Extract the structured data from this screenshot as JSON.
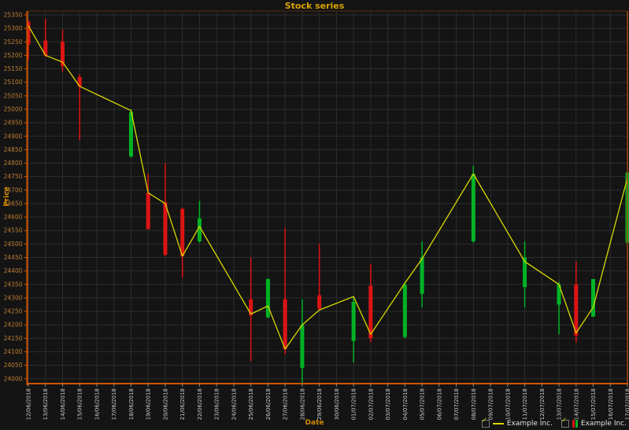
{
  "window": {
    "title": "Stock series"
  },
  "axes": {
    "y_title": "Price",
    "x_title": "Date",
    "y_ticks": [
      25350,
      25300,
      25250,
      25200,
      25150,
      25100,
      25050,
      25000,
      24950,
      24900,
      24850,
      24800,
      24750,
      24700,
      24650,
      24600,
      24550,
      24500,
      24450,
      24400,
      24350,
      24300,
      24250,
      24200,
      24150,
      24100,
      24050,
      24000
    ],
    "x_ticks": [
      "12/06/2018",
      "13/06/2018",
      "14/06/2018",
      "15/06/2018",
      "16/06/2018",
      "17/06/2018",
      "18/06/2018",
      "19/06/2018",
      "20/06/2018",
      "21/06/2018",
      "22/06/2018",
      "23/06/2018",
      "24/06/2018",
      "25/06/2018",
      "26/06/2018",
      "27/06/2018",
      "28/06/2018",
      "29/06/2018",
      "30/06/2018",
      "01/07/2018",
      "02/07/2018",
      "03/07/2018",
      "04/07/2018",
      "05/07/2018",
      "06/07/2018",
      "07/07/2018",
      "08/07/2018",
      "09/07/2018",
      "10/07/2018",
      "11/07/2018",
      "12/07/2018",
      "13/07/2018",
      "14/07/2018",
      "15/07/2018",
      "16/07/2018",
      "17/07/2018"
    ]
  },
  "legend": {
    "items": [
      {
        "label": "Example Inc.",
        "marker": "line-marker",
        "checked": true
      },
      {
        "label": "Example Inc.",
        "marker": "candle-marker",
        "checked": true
      }
    ]
  },
  "icons": {
    "checkbox_check": "✓"
  },
  "colors": {
    "background": "#141414",
    "grid": "#2d2d2d",
    "axis_line": "#d35400",
    "border_right": "#a04a10",
    "border_top": "#3e2410",
    "y_tick_text": "#bd7c33",
    "x_tick_text": "#c9c9c9",
    "x_tick_mark": "#8a8a8a",
    "title_text": "#d9a300",
    "line_series": "#d8d800",
    "candle_up": "#00b325",
    "candle_down": "#dc1414"
  },
  "chart_data": {
    "type": "candlestick+line",
    "title": "Stock series",
    "xlabel": "Date",
    "ylabel": "Price",
    "ylim": [
      23975,
      25365
    ],
    "y_tick_step": 50,
    "grid": true,
    "legend_position": "bottom-right",
    "x_labels": [
      "12/06/2018",
      "13/06/2018",
      "14/06/2018",
      "15/06/2018",
      "16/06/2018",
      "17/06/2018",
      "18/06/2018",
      "19/06/2018",
      "20/06/2018",
      "21/06/2018",
      "22/06/2018",
      "23/06/2018",
      "24/06/2018",
      "25/06/2018",
      "26/06/2018",
      "27/06/2018",
      "28/06/2018",
      "29/06/2018",
      "30/06/2018",
      "01/07/2018",
      "02/07/2018",
      "03/07/2018",
      "04/07/2018",
      "05/07/2018",
      "06/07/2018",
      "07/07/2018",
      "08/07/2018",
      "09/07/2018",
      "10/07/2018",
      "11/07/2018",
      "12/07/2018",
      "13/07/2018",
      "14/07/2018",
      "15/07/2018",
      "16/07/2018",
      "17/07/2018"
    ],
    "series": [
      {
        "name": "Example Inc.",
        "type": "line",
        "points": [
          [
            "12/06/2018",
            25310
          ],
          [
            "13/06/2018",
            25200
          ],
          [
            "14/06/2018",
            25175
          ],
          [
            "15/06/2018",
            25085
          ],
          [
            "18/06/2018",
            24995
          ],
          [
            "19/06/2018",
            24690
          ],
          [
            "20/06/2018",
            24650
          ],
          [
            "21/06/2018",
            24455
          ],
          [
            "22/06/2018",
            24565
          ],
          [
            "25/06/2018",
            24240
          ],
          [
            "26/06/2018",
            24270
          ],
          [
            "27/06/2018",
            24110
          ],
          [
            "28/06/2018",
            24200
          ],
          [
            "29/06/2018",
            24255
          ],
          [
            "01/07/2018",
            24305
          ],
          [
            "02/07/2018",
            24165
          ],
          [
            "04/07/2018",
            24355
          ],
          [
            "05/07/2018",
            24445
          ],
          [
            "08/07/2018",
            24760
          ],
          [
            "11/07/2018",
            24435
          ],
          [
            "13/07/2018",
            24350
          ],
          [
            "14/07/2018",
            24170
          ],
          [
            "15/07/2018",
            24265
          ],
          [
            "17/07/2018",
            24745
          ]
        ]
      },
      {
        "name": "Example Inc.",
        "type": "candlestick",
        "columns": [
          "date",
          "open",
          "high",
          "low",
          "close"
        ],
        "candles": [
          [
            "12/06/2018",
            25325,
            25330,
            25185,
            25240
          ],
          [
            "13/06/2018",
            25255,
            25335,
            25195,
            25200
          ],
          [
            "14/06/2018",
            25250,
            25295,
            25140,
            25160
          ],
          [
            "15/06/2018",
            25120,
            25130,
            24885,
            25085
          ],
          [
            "18/06/2018",
            24825,
            25000,
            24820,
            24990
          ],
          [
            "19/06/2018",
            24690,
            24760,
            24555,
            24555
          ],
          [
            "20/06/2018",
            24655,
            24800,
            24455,
            24460
          ],
          [
            "21/06/2018",
            24630,
            24635,
            24375,
            24455
          ],
          [
            "22/06/2018",
            24510,
            24660,
            24505,
            24595
          ],
          [
            "25/06/2018",
            24295,
            24450,
            24065,
            24235
          ],
          [
            "26/06/2018",
            24228,
            24372,
            24225,
            24370
          ],
          [
            "27/06/2018",
            24295,
            24560,
            24090,
            24110
          ],
          [
            "28/06/2018",
            24040,
            24295,
            23980,
            24200
          ],
          [
            "29/06/2018",
            24310,
            24500,
            24255,
            24260
          ],
          [
            "01/07/2018",
            24140,
            24305,
            24060,
            24285
          ],
          [
            "02/07/2018",
            24345,
            24425,
            24135,
            24150
          ],
          [
            "04/07/2018",
            24155,
            24360,
            24150,
            24350
          ],
          [
            "05/07/2018",
            24315,
            24510,
            24265,
            24450
          ],
          [
            "08/07/2018",
            24510,
            24790,
            24505,
            24760
          ],
          [
            "11/07/2018",
            24340,
            24510,
            24265,
            24450
          ],
          [
            "13/07/2018",
            24275,
            24360,
            24165,
            24350
          ],
          [
            "14/07/2018",
            24350,
            24435,
            24135,
            24160
          ],
          [
            "15/07/2018",
            24230,
            24370,
            24230,
            24370
          ],
          [
            "17/07/2018",
            24505,
            24770,
            24500,
            24765
          ]
        ]
      }
    ]
  }
}
